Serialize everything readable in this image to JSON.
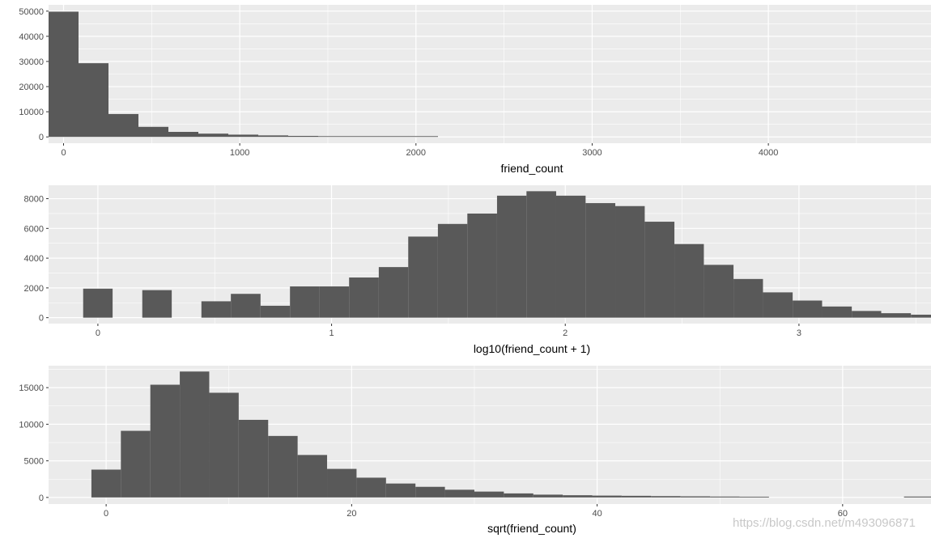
{
  "colors": {
    "panel_bg": "#EBEBEB",
    "grid_major": "#FFFFFF",
    "bar_fill": "#595959",
    "tick_text": "#4D4D4D",
    "axis_title": "#000000"
  },
  "watermark": "https://blog.csdn.net/m493096871",
  "chart_data": [
    {
      "type": "bar",
      "xlabel": "friend_count",
      "ylabel": "",
      "grid": true,
      "xlim": [
        -85,
        4923
      ],
      "ylim": [
        -2500,
        52500
      ],
      "xticks": [
        0,
        1000,
        2000,
        3000,
        4000
      ],
      "xtick_labels": [
        "0",
        "1000",
        "2000",
        "3000",
        "4000"
      ],
      "yticks": [
        0,
        10000,
        20000,
        30000,
        40000,
        50000
      ],
      "ytick_labels": [
        "0",
        "10000",
        "20000",
        "30000",
        "40000",
        "50000"
      ],
      "bin_width": 170,
      "bins": [
        {
          "x0": -85,
          "x1": 85,
          "count": 49800
        },
        {
          "x0": 85,
          "x1": 255,
          "count": 29300
        },
        {
          "x0": 255,
          "x1": 425,
          "count": 9100
        },
        {
          "x0": 425,
          "x1": 595,
          "count": 4000
        },
        {
          "x0": 595,
          "x1": 765,
          "count": 2000
        },
        {
          "x0": 765,
          "x1": 935,
          "count": 1300
        },
        {
          "x0": 935,
          "x1": 1105,
          "count": 900
        },
        {
          "x0": 1105,
          "x1": 1275,
          "count": 600
        },
        {
          "x0": 1275,
          "x1": 1445,
          "count": 400
        },
        {
          "x0": 1445,
          "x1": 1615,
          "count": 300
        },
        {
          "x0": 1615,
          "x1": 1785,
          "count": 300
        },
        {
          "x0": 1785,
          "x1": 1955,
          "count": 300
        },
        {
          "x0": 1955,
          "x1": 2125,
          "count": 300
        }
      ]
    },
    {
      "type": "bar",
      "xlabel": "log10(friend_count + 1)",
      "ylabel": "",
      "grid": true,
      "xlim": [
        -0.211,
        3.565
      ],
      "ylim": [
        -400,
        8900
      ],
      "xticks": [
        0,
        1,
        2,
        3
      ],
      "xtick_labels": [
        "0",
        "1",
        "2",
        "3"
      ],
      "yticks": [
        0,
        2000,
        4000,
        6000,
        8000
      ],
      "ytick_labels": [
        "0",
        "2000",
        "4000",
        "6000",
        "8000"
      ],
      "bin_width": 0.1265,
      "bins": [
        {
          "x0": -0.063,
          "x1": 0.063,
          "count": 1950
        },
        {
          "x0": 0.063,
          "x1": 0.19,
          "count": 0
        },
        {
          "x0": 0.19,
          "x1": 0.316,
          "count": 1850
        },
        {
          "x0": 0.316,
          "x1": 0.443,
          "count": 0
        },
        {
          "x0": 0.443,
          "x1": 0.569,
          "count": 1100
        },
        {
          "x0": 0.569,
          "x1": 0.696,
          "count": 1600
        },
        {
          "x0": 0.696,
          "x1": 0.822,
          "count": 800
        },
        {
          "x0": 0.822,
          "x1": 0.949,
          "count": 2100
        },
        {
          "x0": 0.949,
          "x1": 1.075,
          "count": 2100
        },
        {
          "x0": 1.075,
          "x1": 1.202,
          "count": 2700
        },
        {
          "x0": 1.202,
          "x1": 1.328,
          "count": 3400
        },
        {
          "x0": 1.328,
          "x1": 1.455,
          "count": 5450
        },
        {
          "x0": 1.455,
          "x1": 1.581,
          "count": 6300
        },
        {
          "x0": 1.581,
          "x1": 1.708,
          "count": 7000
        },
        {
          "x0": 1.708,
          "x1": 1.834,
          "count": 8200
        },
        {
          "x0": 1.834,
          "x1": 1.961,
          "count": 8500
        },
        {
          "x0": 1.961,
          "x1": 2.087,
          "count": 8200
        },
        {
          "x0": 2.087,
          "x1": 2.214,
          "count": 7700
        },
        {
          "x0": 2.214,
          "x1": 2.34,
          "count": 7500
        },
        {
          "x0": 2.34,
          "x1": 2.467,
          "count": 6450
        },
        {
          "x0": 2.467,
          "x1": 2.593,
          "count": 4950
        },
        {
          "x0": 2.593,
          "x1": 2.72,
          "count": 3550
        },
        {
          "x0": 2.72,
          "x1": 2.846,
          "count": 2600
        },
        {
          "x0": 2.846,
          "x1": 2.973,
          "count": 1700
        },
        {
          "x0": 2.973,
          "x1": 3.099,
          "count": 1150
        },
        {
          "x0": 3.099,
          "x1": 3.226,
          "count": 750
        },
        {
          "x0": 3.226,
          "x1": 3.352,
          "count": 450
        },
        {
          "x0": 3.352,
          "x1": 3.479,
          "count": 300
        },
        {
          "x0": 3.479,
          "x1": 3.605,
          "count": 200
        }
      ]
    },
    {
      "type": "bar",
      "xlabel": "sqrt(friend_count)",
      "ylabel": "",
      "grid": true,
      "xlim": [
        -4.69,
        67.2
      ],
      "ylim": [
        -900,
        18000
      ],
      "xticks": [
        0,
        20,
        40,
        60
      ],
      "xtick_labels": [
        "0",
        "20",
        "40",
        "60"
      ],
      "yticks": [
        0,
        5000,
        10000,
        15000
      ],
      "ytick_labels": [
        "0",
        "5000",
        "10000",
        "15000"
      ],
      "bin_width": 2.397,
      "bins": [
        {
          "x0": -1.2,
          "x1": 1.2,
          "count": 3800
        },
        {
          "x0": 1.2,
          "x1": 3.6,
          "count": 9100
        },
        {
          "x0": 3.6,
          "x1": 6.0,
          "count": 15400
        },
        {
          "x0": 6.0,
          "x1": 8.4,
          "count": 17200
        },
        {
          "x0": 8.4,
          "x1": 10.8,
          "count": 14300
        },
        {
          "x0": 10.8,
          "x1": 13.2,
          "count": 10600
        },
        {
          "x0": 13.2,
          "x1": 15.6,
          "count": 8400
        },
        {
          "x0": 15.6,
          "x1": 18.0,
          "count": 5800
        },
        {
          "x0": 18.0,
          "x1": 20.4,
          "count": 3900
        },
        {
          "x0": 20.4,
          "x1": 22.8,
          "count": 2700
        },
        {
          "x0": 22.8,
          "x1": 25.2,
          "count": 1900
        },
        {
          "x0": 25.2,
          "x1": 27.6,
          "count": 1450
        },
        {
          "x0": 27.6,
          "x1": 30.0,
          "count": 1050
        },
        {
          "x0": 30.0,
          "x1": 32.4,
          "count": 800
        },
        {
          "x0": 32.4,
          "x1": 34.8,
          "count": 550
        },
        {
          "x0": 34.8,
          "x1": 37.2,
          "count": 380
        },
        {
          "x0": 37.2,
          "x1": 39.6,
          "count": 300
        },
        {
          "x0": 39.6,
          "x1": 42.0,
          "count": 250
        },
        {
          "x0": 42.0,
          "x1": 44.4,
          "count": 220
        },
        {
          "x0": 44.4,
          "x1": 46.8,
          "count": 180
        },
        {
          "x0": 46.8,
          "x1": 49.2,
          "count": 150
        },
        {
          "x0": 49.2,
          "x1": 51.6,
          "count": 120
        },
        {
          "x0": 51.6,
          "x1": 54.0,
          "count": 100
        },
        {
          "x0": 65.0,
          "x1": 67.4,
          "count": 120
        }
      ]
    }
  ]
}
